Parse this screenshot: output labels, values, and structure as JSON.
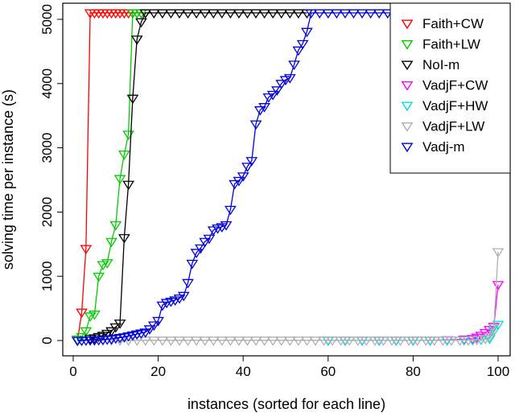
{
  "chart_data": {
    "type": "line",
    "title": "",
    "xlabel": "instances (sorted for each line)",
    "ylabel": "solving time per instance (s)",
    "xlim": [
      -3,
      104
    ],
    "ylim": [
      -150,
      5200
    ],
    "xticks": [
      "0",
      "20",
      "40",
      "60",
      "80",
      "100"
    ],
    "xtick_values": [
      0,
      20,
      40,
      60,
      80,
      100
    ],
    "yticks": [
      "0",
      "1000",
      "2000",
      "3000",
      "4000",
      "5000"
    ],
    "ytick_values": [
      0,
      1000,
      2000,
      3000,
      4000,
      5000
    ],
    "timeout": 5100,
    "grid": false,
    "legend_position": "top-right",
    "marker": "down-triangle",
    "series": [
      {
        "name": "Faith+CW",
        "color": "#ff0000",
        "points": [
          [
            1,
            0
          ],
          [
            2,
            440
          ],
          [
            3,
            1430
          ],
          [
            4,
            5100
          ],
          [
            5,
            5100
          ],
          [
            6,
            5100
          ],
          [
            7,
            5100
          ],
          [
            8,
            5100
          ],
          [
            9,
            5100
          ],
          [
            10,
            5100
          ],
          [
            11,
            5100
          ],
          [
            12,
            5100
          ],
          [
            13,
            5100
          ],
          [
            14,
            5100
          ],
          [
            15,
            5100
          ],
          [
            16,
            5100
          ],
          [
            17,
            5100
          ]
        ]
      },
      {
        "name": "Faith+LW",
        "color": "#00cc00",
        "points": [
          [
            1,
            20
          ],
          [
            2,
            60
          ],
          [
            3,
            150
          ],
          [
            4,
            380
          ],
          [
            5,
            410
          ],
          [
            6,
            1000
          ],
          [
            7,
            1180
          ],
          [
            8,
            1210
          ],
          [
            9,
            1540
          ],
          [
            10,
            1800
          ],
          [
            11,
            2520
          ],
          [
            12,
            2900
          ],
          [
            13,
            3210
          ],
          [
            14,
            5100
          ],
          [
            15,
            5100
          ],
          [
            16,
            5100
          ],
          [
            17,
            5100
          ]
        ]
      },
      {
        "name": "NoI-m",
        "color": "#000000",
        "points": [
          [
            4,
            30
          ],
          [
            5,
            40
          ],
          [
            6,
            60
          ],
          [
            7,
            80
          ],
          [
            8,
            110
          ],
          [
            9,
            150
          ],
          [
            10,
            210
          ],
          [
            11,
            270
          ],
          [
            12,
            1600
          ],
          [
            13,
            2430
          ],
          [
            14,
            3770
          ],
          [
            15,
            4690
          ],
          [
            16,
            4960
          ],
          [
            17,
            5100
          ],
          [
            19,
            5100
          ],
          [
            21,
            5100
          ],
          [
            23,
            5100
          ],
          [
            25,
            5100
          ],
          [
            27,
            5100
          ],
          [
            29,
            5100
          ],
          [
            31,
            5100
          ],
          [
            33,
            5100
          ],
          [
            35,
            5100
          ],
          [
            37,
            5100
          ],
          [
            39,
            5100
          ],
          [
            41,
            5100
          ],
          [
            43,
            5100
          ],
          [
            45,
            5100
          ],
          [
            47,
            5100
          ],
          [
            49,
            5100
          ],
          [
            51,
            5100
          ],
          [
            53,
            5100
          ],
          [
            55,
            5100
          ]
        ]
      },
      {
        "name": "VadjF+CW",
        "color": "#ff00ff",
        "points": [
          [
            60,
            5
          ],
          [
            64,
            5
          ],
          [
            68,
            5
          ],
          [
            72,
            5
          ],
          [
            76,
            5
          ],
          [
            80,
            5
          ],
          [
            84,
            5
          ],
          [
            88,
            10
          ],
          [
            92,
            20
          ],
          [
            94,
            30
          ],
          [
            95,
            50
          ],
          [
            96,
            80
          ],
          [
            97,
            120
          ],
          [
            98,
            170
          ],
          [
            99,
            220
          ],
          [
            100,
            870
          ]
        ]
      },
      {
        "name": "VadjF+HW",
        "color": "#00dddd",
        "points": [
          [
            60,
            3
          ],
          [
            64,
            3
          ],
          [
            68,
            3
          ],
          [
            72,
            3
          ],
          [
            76,
            3
          ],
          [
            80,
            3
          ],
          [
            84,
            3
          ],
          [
            88,
            5
          ],
          [
            92,
            8
          ],
          [
            94,
            10
          ],
          [
            96,
            15
          ],
          [
            98,
            30
          ],
          [
            99,
            150
          ],
          [
            100,
            250
          ]
        ]
      },
      {
        "name": "VadjF+LW",
        "color": "#b0b0b0",
        "points": [
          [
            1,
            4
          ],
          [
            3,
            4
          ],
          [
            5,
            4
          ],
          [
            7,
            4
          ],
          [
            9,
            4
          ],
          [
            11,
            4
          ],
          [
            13,
            4
          ],
          [
            15,
            4
          ],
          [
            17,
            4
          ],
          [
            19,
            4
          ],
          [
            21,
            4
          ],
          [
            23,
            4
          ],
          [
            25,
            4
          ],
          [
            27,
            4
          ],
          [
            29,
            4
          ],
          [
            31,
            4
          ],
          [
            33,
            4
          ],
          [
            35,
            4
          ],
          [
            37,
            4
          ],
          [
            39,
            4
          ],
          [
            41,
            4
          ],
          [
            43,
            4
          ],
          [
            45,
            4
          ],
          [
            47,
            4
          ],
          [
            49,
            4
          ],
          [
            51,
            4
          ],
          [
            53,
            4
          ],
          [
            55,
            4
          ],
          [
            57,
            4
          ],
          [
            59,
            4
          ],
          [
            61,
            4
          ],
          [
            63,
            4
          ],
          [
            65,
            4
          ],
          [
            67,
            4
          ],
          [
            69,
            4
          ],
          [
            71,
            4
          ],
          [
            73,
            4
          ],
          [
            75,
            4
          ],
          [
            77,
            4
          ],
          [
            79,
            4
          ],
          [
            81,
            4
          ],
          [
            83,
            4
          ],
          [
            85,
            4
          ],
          [
            87,
            4
          ],
          [
            89,
            4
          ],
          [
            91,
            6
          ],
          [
            93,
            8
          ],
          [
            95,
            12
          ],
          [
            97,
            30
          ],
          [
            98,
            60
          ],
          [
            99,
            200
          ],
          [
            100,
            1380
          ]
        ]
      },
      {
        "name": "Vadj-m",
        "color": "#0000dd",
        "points": [
          [
            1,
            0
          ],
          [
            2,
            2
          ],
          [
            3,
            4
          ],
          [
            4,
            6
          ],
          [
            5,
            8
          ],
          [
            6,
            10
          ],
          [
            7,
            15
          ],
          [
            8,
            20
          ],
          [
            9,
            25
          ],
          [
            10,
            35
          ],
          [
            11,
            45
          ],
          [
            12,
            55
          ],
          [
            13,
            70
          ],
          [
            14,
            85
          ],
          [
            15,
            100
          ],
          [
            16,
            115
          ],
          [
            17,
            130
          ],
          [
            18,
            180
          ],
          [
            19,
            240
          ],
          [
            20,
            310
          ],
          [
            21,
            550
          ],
          [
            22,
            590
          ],
          [
            23,
            610
          ],
          [
            24,
            630
          ],
          [
            25,
            660
          ],
          [
            26,
            700
          ],
          [
            27,
            900
          ],
          [
            28,
            1200
          ],
          [
            29,
            1370
          ],
          [
            30,
            1440
          ],
          [
            31,
            1540
          ],
          [
            32,
            1590
          ],
          [
            33,
            1720
          ],
          [
            34,
            1750
          ],
          [
            35,
            1770
          ],
          [
            36,
            1800
          ],
          [
            37,
            2040
          ],
          [
            38,
            2440
          ],
          [
            39,
            2490
          ],
          [
            40,
            2560
          ],
          [
            41,
            2710
          ],
          [
            42,
            2800
          ],
          [
            43,
            3370
          ],
          [
            44,
            3590
          ],
          [
            45,
            3640
          ],
          [
            46,
            3790
          ],
          [
            47,
            3830
          ],
          [
            48,
            3900
          ],
          [
            49,
            4000
          ],
          [
            50,
            4060
          ],
          [
            51,
            4090
          ],
          [
            52,
            4300
          ],
          [
            53,
            4520
          ],
          [
            54,
            4620
          ],
          [
            55,
            4810
          ],
          [
            56,
            5100
          ],
          [
            58,
            5100
          ],
          [
            60,
            5100
          ],
          [
            62,
            5100
          ],
          [
            64,
            5100
          ],
          [
            66,
            5100
          ],
          [
            68,
            5100
          ],
          [
            70,
            5100
          ],
          [
            72,
            5100
          ],
          [
            74,
            5100
          ],
          [
            76,
            5100
          ],
          [
            78,
            5100
          ],
          [
            80,
            5100
          ],
          [
            82,
            5100
          ],
          [
            84,
            5100
          ],
          [
            86,
            5100
          ],
          [
            88,
            5100
          ],
          [
            90,
            5100
          ],
          [
            92,
            5100
          ],
          [
            94,
            5100
          ],
          [
            96,
            5100
          ],
          [
            98,
            5100
          ],
          [
            100,
            5100
          ]
        ]
      }
    ]
  }
}
